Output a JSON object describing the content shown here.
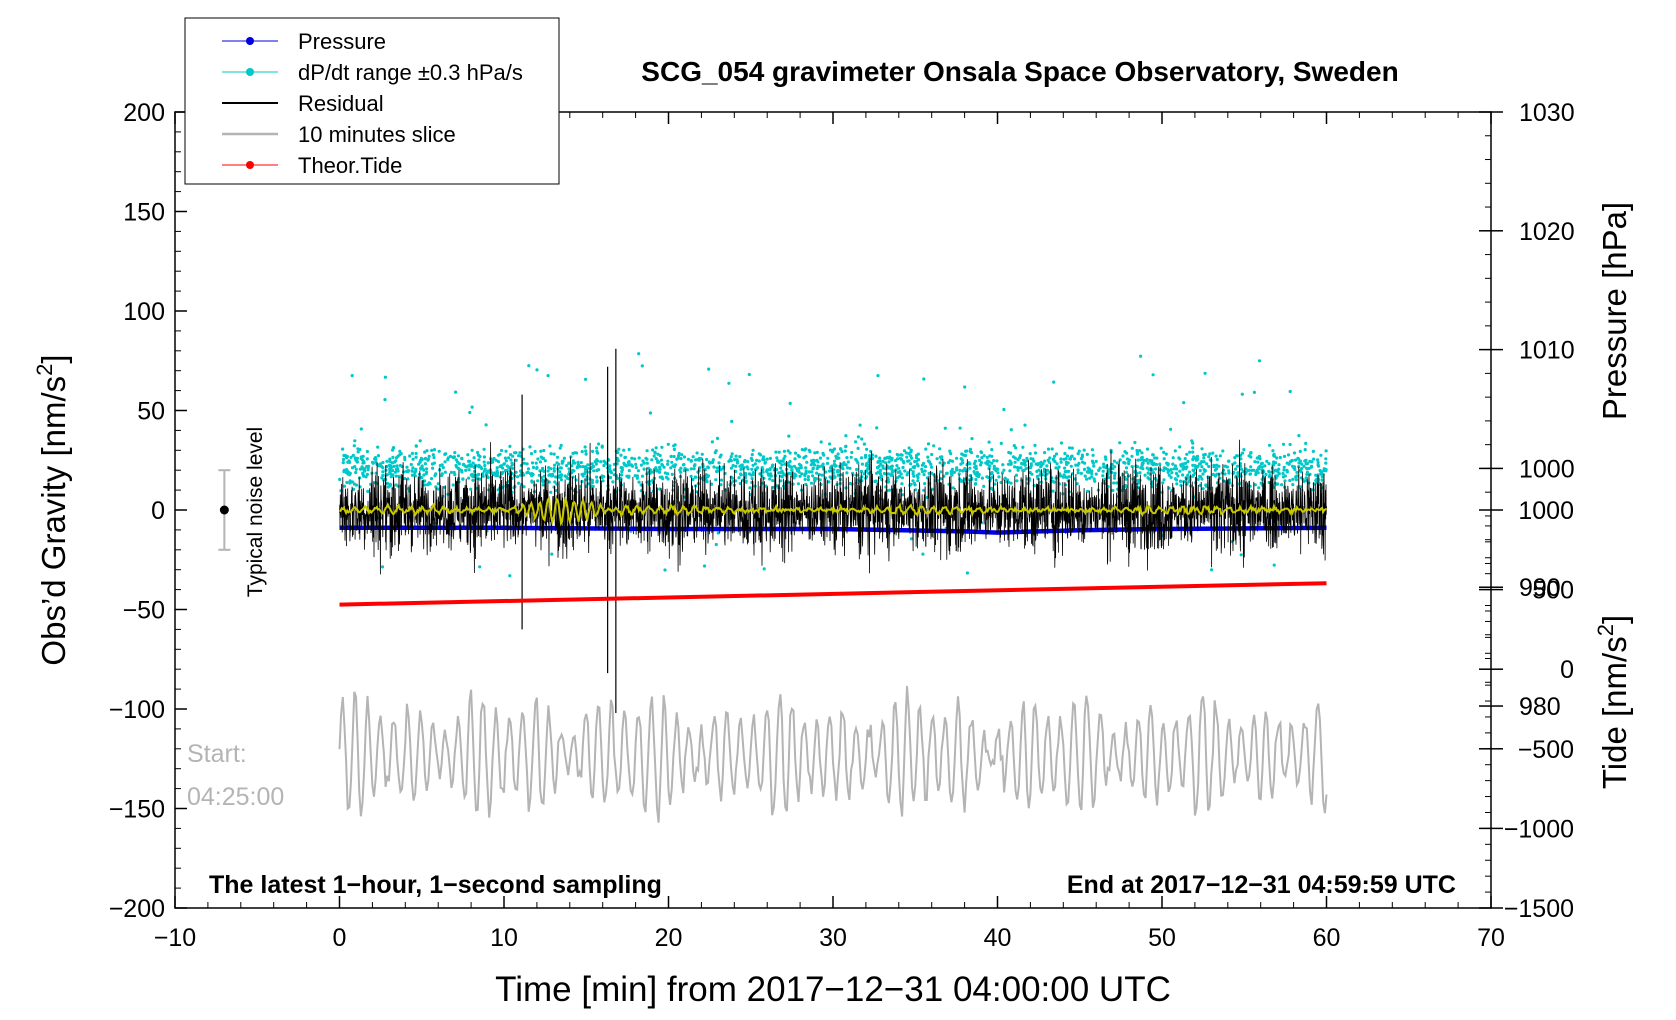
{
  "chart_data": {
    "type": "line",
    "title": "SCG_054 gravimeter Onsala Space Observatory, Sweden",
    "xlabel": "Time [min] from 2017−12−31 04:00:00 UTC",
    "ylabel_left_main": "Obs’d Gravity [nm/s",
    "ylabel_left_sup": "2",
    "ylabel_left_tail": "]",
    "ylabel_right_pressure": "Pressure [hPa]",
    "ylabel_right_tide_main": "Tide [nm/s",
    "ylabel_right_tide_sup": "2",
    "ylabel_right_tide_tail": "]",
    "xlim": [
      -10,
      70
    ],
    "ylim": [
      -200,
      200
    ],
    "pressure_axis_range": [
      963,
      1030
    ],
    "tide_axis_range": [
      -1500,
      3500
    ],
    "x_ticks": [
      {
        "value": -10,
        "label": "−10"
      },
      {
        "value": 0,
        "label": "0"
      },
      {
        "value": 10,
        "label": "10"
      },
      {
        "value": 20,
        "label": "20"
      },
      {
        "value": 30,
        "label": "30"
      },
      {
        "value": 40,
        "label": "40"
      },
      {
        "value": 50,
        "label": "50"
      },
      {
        "value": 60,
        "label": "60"
      },
      {
        "value": 70,
        "label": "70"
      }
    ],
    "y_ticks_left": [
      {
        "value": 200,
        "label": "200"
      },
      {
        "value": 150,
        "label": "150"
      },
      {
        "value": 100,
        "label": "100"
      },
      {
        "value": 50,
        "label": "50"
      },
      {
        "value": 0,
        "label": "0"
      },
      {
        "value": -50,
        "label": "−50"
      },
      {
        "value": -100,
        "label": "−100"
      },
      {
        "value": -150,
        "label": "−150"
      },
      {
        "value": -200,
        "label": "−200"
      }
    ],
    "pressure_ticks": [
      {
        "value": 1030,
        "label": "1030"
      },
      {
        "value": 1020,
        "label": "1020"
      },
      {
        "value": 1010,
        "label": "1010"
      },
      {
        "value": 1000,
        "label": "1000"
      },
      {
        "value": 990,
        "label": "990"
      },
      {
        "value": 980,
        "label": "980"
      }
    ],
    "tide_ticks": [
      {
        "value": 1000,
        "label": "1000"
      },
      {
        "value": 500,
        "label": "500"
      },
      {
        "value": 0,
        "label": "0"
      },
      {
        "value": -500,
        "label": "−500"
      },
      {
        "value": -1000,
        "label": "−1000"
      },
      {
        "value": -1500,
        "label": "−1500"
      }
    ],
    "legend": [
      {
        "name": "Pressure",
        "color": "#0000e0",
        "marker": "dot"
      },
      {
        "name": "dP/dt range ±0.3 hPa/s",
        "color": "#00c8c8",
        "marker": "dot"
      },
      {
        "name": "Residual",
        "color": "#000000",
        "marker": "none"
      },
      {
        "name": "10 minutes slice",
        "color": "#b4b4b4",
        "marker": "none"
      },
      {
        "name": "Theor.Tide",
        "color": "#ff0000",
        "marker": "dot"
      }
    ],
    "series": [
      {
        "name": "Pressure",
        "axis": "pressure",
        "x": [
          0,
          10,
          20,
          30,
          38,
          40,
          45,
          50,
          60
        ],
        "values": [
          995.0,
          995.0,
          994.9,
          994.9,
          994.7,
          994.6,
          994.8,
          994.9,
          995.0
        ]
      },
      {
        "name": "dP/dt range ±0.3 hPa/s",
        "axis": "pressure",
        "center": 1000,
        "spread": 2.2,
        "x_range": [
          0,
          60
        ]
      },
      {
        "name": "Residual",
        "axis": "gravity",
        "x_range": [
          0,
          60
        ],
        "amplitude_typical": 25,
        "spikes": [
          {
            "x": 16.3,
            "y_min": -82,
            "y_max": 72
          },
          {
            "x": 16.8,
            "y_min": -102,
            "y_max": 81
          },
          {
            "x": 11.1,
            "y_min": -60,
            "y_max": 58
          }
        ]
      },
      {
        "name": "Theor.Tide",
        "axis": "tide",
        "x": [
          0,
          60
        ],
        "values": [
          406,
          540
        ]
      },
      {
        "name": "10 minutes slice",
        "axis": "gravity",
        "x_range": [
          0,
          60
        ],
        "center": -123,
        "amplitude_typical": 25
      },
      {
        "name": "Filtered residual",
        "axis": "gravity",
        "color": "#c8c800",
        "x_range": [
          0,
          60
        ],
        "center": 0,
        "amplitude_typical": 1.5
      }
    ],
    "noise_bar": {
      "x": -7,
      "y_center": 0,
      "y_min": -20,
      "y_max": 20,
      "label": "Typical noise level"
    },
    "annotations": {
      "start_label": "Start:",
      "start_time": "04:25:00",
      "bottom_left": "The latest 1−hour, 1−second sampling",
      "bottom_right": "End at 2017−12−31 04:59:59 UTC"
    }
  }
}
